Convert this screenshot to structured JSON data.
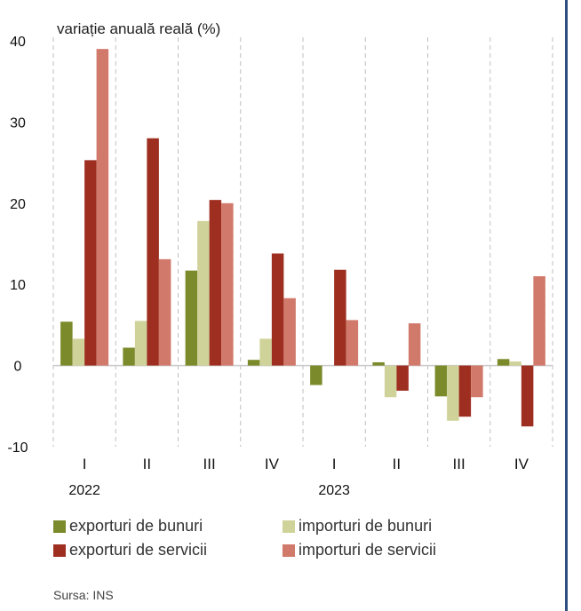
{
  "chart_data": {
    "type": "bar",
    "ylabel": "variație anuală reală (%)",
    "ylim": [
      -10,
      40
    ],
    "yticks": [
      -10,
      0,
      10,
      20,
      30,
      40
    ],
    "categories": [
      "I",
      "II",
      "III",
      "IV",
      "I",
      "II",
      "III",
      "IV"
    ],
    "years": [
      {
        "label": "2022",
        "category_index": 0
      },
      {
        "label": "2023",
        "category_index": 4
      }
    ],
    "series": [
      {
        "name": "exporturi de bunuri",
        "color": "#7b8a2a",
        "values": [
          5.4,
          2.2,
          11.7,
          0.7,
          -2.4,
          0.4,
          -3.8,
          0.8
        ]
      },
      {
        "name": "importuri de bunuri",
        "color": "#cfd39a",
        "values": [
          3.3,
          5.5,
          17.8,
          3.3,
          0.0,
          -3.9,
          -6.8,
          0.5
        ]
      },
      {
        "name": "exporturi de servicii",
        "color": "#9e2f20",
        "values": [
          25.3,
          28.0,
          20.4,
          13.8,
          11.8,
          -3.1,
          -6.3,
          -7.5
        ]
      },
      {
        "name": "importuri de servicii",
        "color": "#d1796a",
        "values": [
          39.0,
          13.1,
          20.0,
          8.3,
          5.6,
          5.2,
          -3.9,
          11.0
        ]
      }
    ],
    "grid": "vertical-dashed",
    "legend_position": "bottom"
  },
  "source": "Sursa: INS"
}
